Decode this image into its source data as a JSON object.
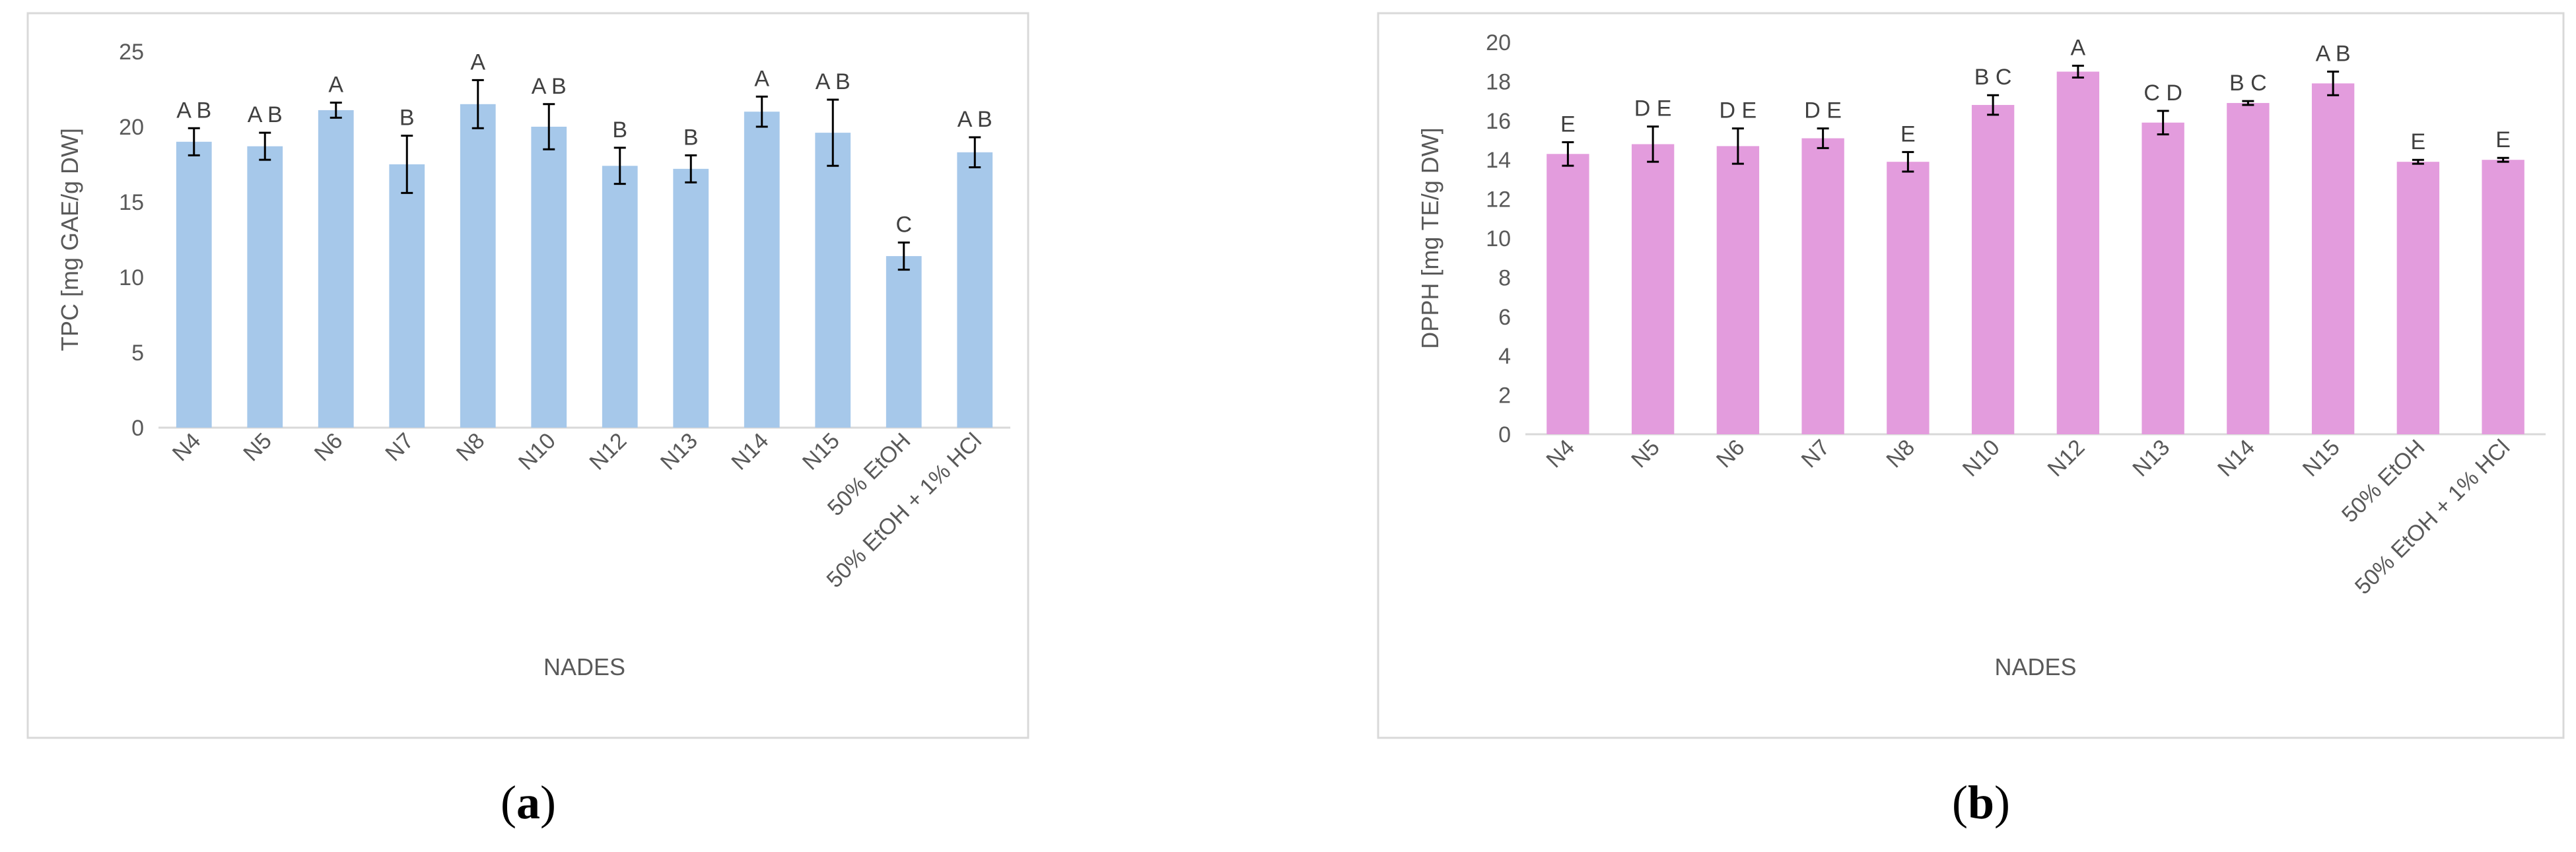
{
  "chart_data": [
    {
      "type": "bar",
      "panel_label": "a",
      "ylabel": "TPC [mg GAE/g DW]",
      "xlabel": "NADES",
      "ylim": [
        0,
        25
      ],
      "yticks": [
        0,
        5,
        10,
        15,
        20,
        25
      ],
      "categories": [
        "N4",
        "N5",
        "N6",
        "N7",
        "N8",
        "N10",
        "N12",
        "N13",
        "N14",
        "N15",
        "50% EtOH",
        "50% EtOH + 1% HCl"
      ],
      "values": [
        19.0,
        18.7,
        21.1,
        17.5,
        21.5,
        20.0,
        17.4,
        17.2,
        21.0,
        19.6,
        11.4,
        18.3
      ],
      "errors": [
        0.9,
        0.9,
        0.5,
        1.9,
        1.6,
        1.5,
        1.2,
        0.9,
        1.0,
        2.2,
        0.9,
        1.0
      ],
      "letters": [
        "A B",
        "A B",
        "A",
        "B",
        "A",
        "A B",
        "B",
        "B",
        "A",
        "A B",
        "C",
        "A B"
      ],
      "color": "#a6c8ea",
      "grid": false,
      "legend": "none"
    },
    {
      "type": "bar",
      "panel_label": "b",
      "ylabel": "DPPH [mg TE/g DW]",
      "xlabel": "NADES",
      "ylim": [
        0,
        20
      ],
      "yticks": [
        0,
        2,
        4,
        6,
        8,
        10,
        12,
        14,
        16,
        18,
        20
      ],
      "categories": [
        "N4",
        "N5",
        "N6",
        "N7",
        "N8",
        "N10",
        "N12",
        "N13",
        "N14",
        "N15",
        "50% EtOH",
        "50% EtOH + 1% HCl"
      ],
      "values": [
        14.3,
        14.8,
        14.7,
        15.1,
        13.9,
        16.8,
        18.5,
        15.9,
        16.9,
        17.9,
        13.9,
        14.0
      ],
      "errors": [
        0.6,
        0.9,
        0.9,
        0.5,
        0.5,
        0.5,
        0.3,
        0.6,
        0.1,
        0.6,
        0.1,
        0.1
      ],
      "letters": [
        "E",
        "D E",
        "D E",
        "D E",
        "E",
        "B C",
        "A",
        "C D",
        "B C",
        "A B",
        "E",
        "E"
      ],
      "color": "#e39cdd",
      "grid": false,
      "legend": "none"
    }
  ]
}
